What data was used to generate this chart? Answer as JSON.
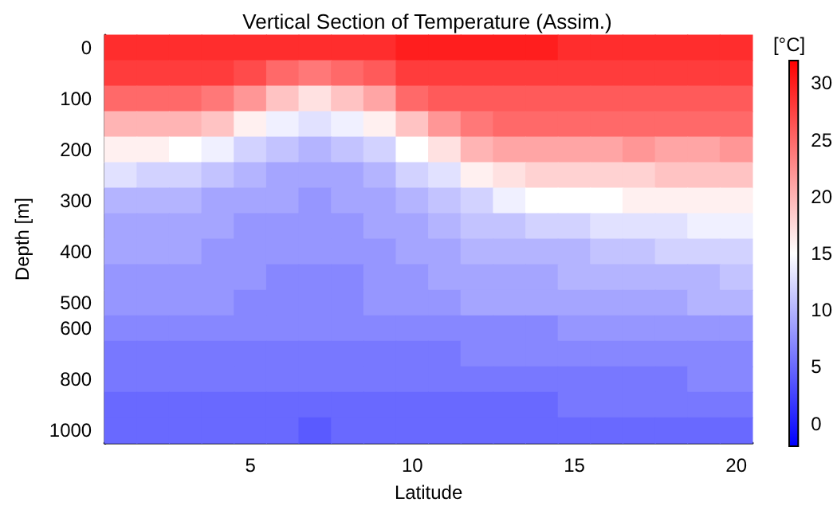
{
  "chart_data": {
    "type": "heatmap",
    "title": "Vertical Section of Temperature (Assim.)",
    "xlabel": "Latitude",
    "ylabel": "Depth [m]",
    "clabel": "[°C]",
    "categories": [
      null,
      null,
      null,
      null,
      "5",
      null,
      null,
      null,
      null,
      "10",
      null,
      null,
      null,
      null,
      "15",
      null,
      null,
      null,
      null,
      "20"
    ],
    "y_categories": [
      "0",
      null,
      "100",
      null,
      "200",
      null,
      "300",
      null,
      "400",
      null,
      "500",
      "600",
      null,
      "800",
      null,
      "1000"
    ],
    "cells": [
      [
        29,
        29,
        29,
        29,
        29,
        29,
        29,
        29,
        29,
        30,
        30,
        30,
        30,
        30,
        29,
        29,
        29,
        29,
        29,
        29
      ],
      [
        28,
        28,
        28,
        28,
        27,
        25,
        24,
        25,
        26,
        28,
        28,
        28,
        28,
        28,
        28,
        28,
        28,
        28,
        28,
        28
      ],
      [
        25,
        25,
        25,
        24,
        22,
        19,
        17,
        19,
        21,
        25,
        26,
        26,
        26,
        26,
        26,
        26,
        26,
        26,
        26,
        26
      ],
      [
        20,
        20,
        20,
        19,
        16,
        14,
        13,
        14,
        16,
        19,
        22,
        24,
        25,
        25,
        25,
        25,
        25,
        25,
        25,
        25
      ],
      [
        16,
        16,
        15,
        14,
        12,
        11,
        10,
        11,
        12,
        15,
        17,
        20,
        21,
        21,
        21,
        21,
        22,
        21,
        21,
        22
      ],
      [
        13,
        12,
        12,
        11,
        10,
        9,
        9,
        9,
        10,
        12,
        13,
        16,
        17,
        18,
        18,
        18,
        18,
        19,
        19,
        19
      ],
      [
        10,
        10,
        10,
        9,
        9,
        9,
        8,
        9,
        9,
        10,
        11,
        12,
        14,
        15,
        15,
        15,
        16,
        16,
        16,
        16
      ],
      [
        9,
        9,
        9,
        9,
        8,
        8,
        8,
        8,
        9,
        9,
        10,
        11,
        11,
        12,
        12,
        13,
        13,
        13,
        14,
        14
      ],
      [
        9,
        9,
        9,
        8,
        8,
        8,
        8,
        8,
        8,
        9,
        9,
        10,
        10,
        10,
        10,
        11,
        11,
        12,
        12,
        12
      ],
      [
        8,
        8,
        8,
        8,
        8,
        7,
        7,
        7,
        8,
        8,
        9,
        9,
        9,
        9,
        10,
        10,
        10,
        10,
        10,
        11
      ],
      [
        8,
        8,
        8,
        8,
        7,
        7,
        7,
        7,
        8,
        8,
        8,
        9,
        9,
        9,
        9,
        9,
        9,
        9,
        10,
        10
      ],
      [
        7,
        7,
        7,
        7,
        7,
        7,
        7,
        7,
        7,
        7,
        7,
        7,
        7,
        7,
        8,
        8,
        8,
        8,
        8,
        8
      ],
      [
        6,
        6,
        6,
        6,
        6,
        6,
        6,
        6,
        6,
        6,
        6,
        7,
        7,
        7,
        7,
        7,
        7,
        7,
        7,
        7
      ],
      [
        6,
        6,
        6,
        6,
        6,
        6,
        6,
        6,
        6,
        6,
        6,
        6,
        6,
        6,
        6,
        6,
        6,
        6,
        7,
        7
      ],
      [
        5,
        5,
        5,
        5,
        5,
        5,
        5,
        5,
        5,
        5,
        5,
        5,
        5,
        5,
        6,
        6,
        6,
        6,
        6,
        6
      ],
      [
        5,
        5,
        5,
        5,
        5,
        5,
        4,
        5,
        5,
        5,
        5,
        5,
        5,
        5,
        5,
        5,
        5,
        5,
        5,
        5
      ]
    ],
    "clim": [
      -2,
      32
    ],
    "cticks": [
      0,
      5,
      10,
      15,
      20,
      25,
      30
    ]
  }
}
